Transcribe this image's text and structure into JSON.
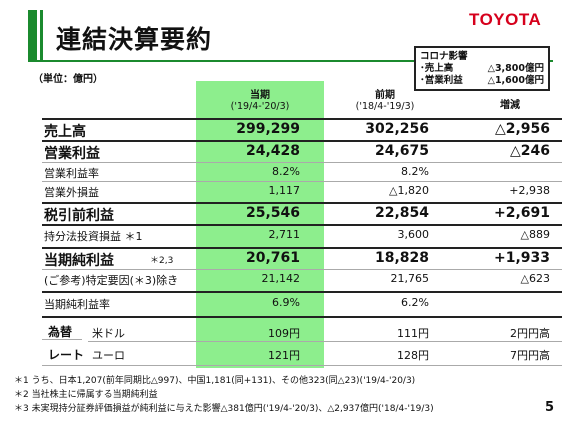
{
  "title": "連結決算要約",
  "logo": "TOYOTA",
  "corona": {
    "heading": "コロナ影響",
    "rows": [
      {
        "label": "･売上高",
        "value": "△3,800億円"
      },
      {
        "label": "･営業利益",
        "value": "△1,600億円"
      }
    ]
  },
  "unit": "（単位：億円）",
  "headers": {
    "current": "当期",
    "current_period": "('19/4-'20/3)",
    "prior": "前期",
    "prior_period": "('18/4-'19/3)",
    "change": "増減"
  },
  "rows": [
    {
      "label": "売上高",
      "current": "299,299",
      "prior": "302,256",
      "change": "△2,956"
    },
    {
      "label": "営業利益",
      "current": "24,428",
      "prior": "24,675",
      "change": "△246"
    },
    {
      "label": "営業利益率",
      "current": "8.2%",
      "prior": "8.2%",
      "change": ""
    },
    {
      "label": "営業外損益",
      "current": "1,117",
      "prior": "△1,820",
      "change": "+2,938"
    },
    {
      "label": "税引前利益",
      "current": "25,546",
      "prior": "22,854",
      "change": "+2,691"
    },
    {
      "label": "持分法投資損益 ＊1",
      "current": "2,711",
      "prior": "3,600",
      "change": "△889"
    },
    {
      "label": "当期純利益",
      "label_note": "＊2,3",
      "current": "20,761",
      "prior": "18,828",
      "change": "+1,933"
    },
    {
      "label": "(ご参考)特定要因(＊3)除き",
      "current": "21,142",
      "prior": "21,765",
      "change": "△623"
    },
    {
      "label": "当期純利益率",
      "current": "6.9%",
      "prior": "6.2%",
      "change": ""
    }
  ],
  "fx": {
    "label_top": "為替",
    "label_bottom": "レート",
    "usd": {
      "label": "米ドル",
      "current": "109円",
      "prior": "111円",
      "change": "2円円高"
    },
    "eur": {
      "label": "ユーロ",
      "current": "121円",
      "prior": "128円",
      "change": "7円円高"
    }
  },
  "notes": [
    "＊1 うち、日本1,207(前年同期比△997)、中国1,181(同+131)、その他323(同△23)('19/4-'20/3)",
    "＊2 当社株主に帰属する当期純利益",
    "＊3 未実現持分証券評価損益が純利益に与えた影響△381億円('19/4-'20/3)、△2,937億円('18/4-'19/3)"
  ],
  "page_number": "5"
}
